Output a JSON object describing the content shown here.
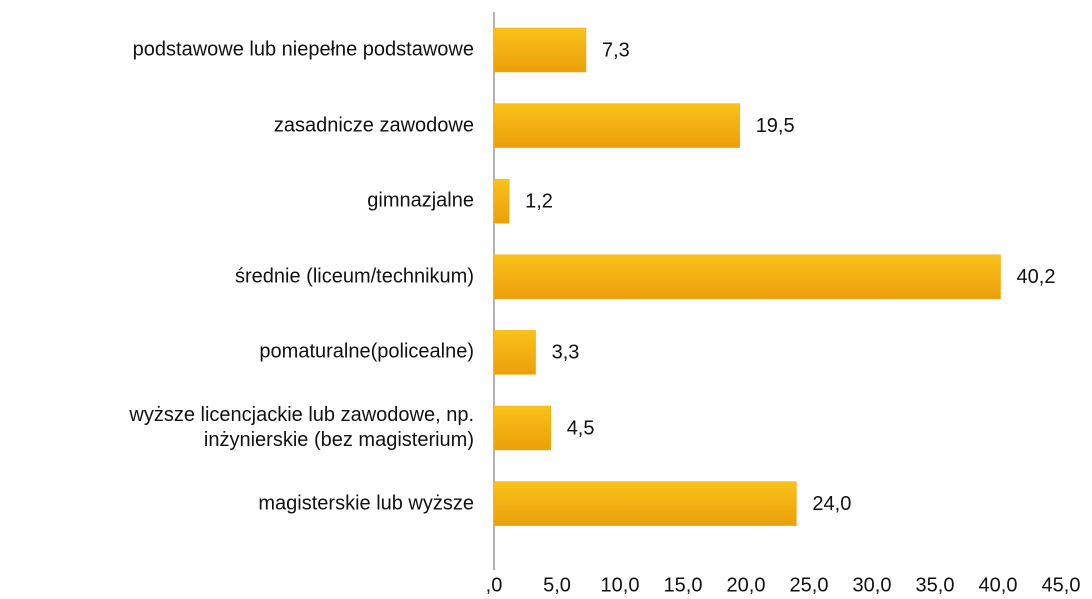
{
  "chart_data": {
    "type": "barh",
    "categories": [
      "podstawowe lub niepełne podstawowe",
      "zasadnicze zawodowe",
      "gimnazjalne",
      "średnie (liceum/technikum)",
      "pomaturalne(policealne)",
      "wyższe licencjackie lub zawodowe, np.\ninżynierskie (bez magisterium)",
      "magisterskie lub wyższe"
    ],
    "values": [
      7.3,
      19.5,
      1.2,
      40.2,
      3.3,
      4.5,
      24.0
    ],
    "value_labels": [
      "7,3",
      "19,5",
      "1,2",
      "40,2",
      "3,3",
      "4,5",
      "24,0"
    ],
    "color": "#f2ab10",
    "xlim": [
      0,
      45
    ],
    "xticks": [
      {
        "value": 0,
        "label": ",0"
      },
      {
        "value": 5,
        "label": "5,0"
      },
      {
        "value": 10,
        "label": "10,0"
      },
      {
        "value": 15,
        "label": "15,0"
      },
      {
        "value": 20,
        "label": "20,0"
      },
      {
        "value": 25,
        "label": "25,0"
      },
      {
        "value": 30,
        "label": "30,0"
      },
      {
        "value": 35,
        "label": "35,0"
      },
      {
        "value": 40,
        "label": "40,0"
      },
      {
        "value": 45,
        "label": "45,0"
      }
    ]
  }
}
